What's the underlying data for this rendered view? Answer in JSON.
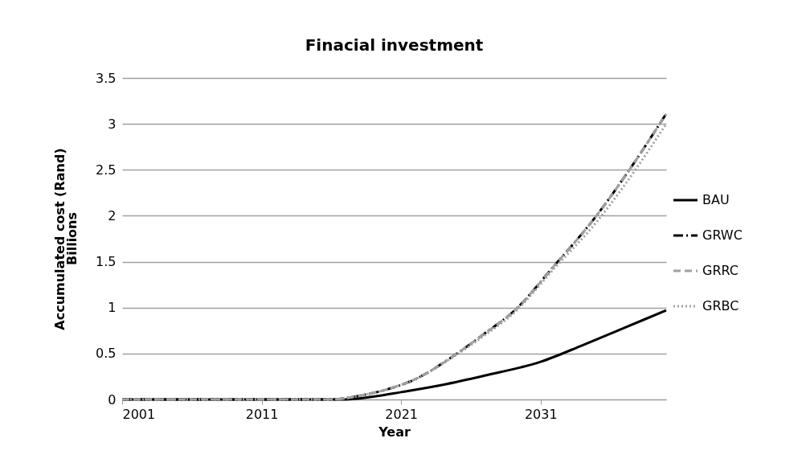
{
  "chart_data": {
    "type": "line",
    "title": "Finacial investment",
    "xlabel": "Year",
    "ylabel": "Accumulated cost (Rand)",
    "annotations": [
      "Billions"
    ],
    "xlim": [
      2001,
      2040
    ],
    "xticks": [
      2001,
      2011,
      2021,
      2031
    ],
    "ylim": [
      0,
      3.5
    ],
    "yticks": [
      0,
      0.5,
      1,
      1.5,
      2,
      2.5,
      3,
      3.5
    ],
    "grid": "y",
    "legend": "right",
    "marker": "none",
    "series": [
      {
        "name": "BAU",
        "color": "#000000",
        "line_style": "solid",
        "x": [
          2001,
          2017,
          2019,
          2021,
          2024,
          2027,
          2031,
          2034,
          2037,
          2040
        ],
        "values": [
          0,
          0,
          0.03,
          0.08,
          0.16,
          0.26,
          0.41,
          0.59,
          0.78,
          0.97
        ]
      },
      {
        "name": "GRWC",
        "color": "#000000",
        "line_style": "dashdot",
        "x": [
          2001,
          2016,
          2018,
          2020,
          2022,
          2025,
          2027,
          2029,
          2032,
          2035,
          2037,
          2040
        ],
        "values": [
          0,
          0,
          0.04,
          0.11,
          0.22,
          0.5,
          0.72,
          0.95,
          1.46,
          2.0,
          2.42,
          3.11
        ]
      },
      {
        "name": "GRRC",
        "color": "#a0a0a0",
        "line_style": "dashed",
        "x": [
          2001,
          2016,
          2018,
          2020,
          2022,
          2025,
          2027,
          2029,
          2032,
          2035,
          2037,
          2040
        ],
        "values": [
          0,
          0,
          0.04,
          0.11,
          0.22,
          0.5,
          0.72,
          0.95,
          1.46,
          2.0,
          2.42,
          3.11
        ]
      },
      {
        "name": "GRBC",
        "color": "#a0a0a0",
        "line_style": "dotted",
        "x": [
          2001,
          2016,
          2018,
          2020,
          2022,
          2025,
          2027,
          2029,
          2032,
          2035,
          2037,
          2040
        ],
        "values": [
          0,
          0,
          0.04,
          0.11,
          0.22,
          0.49,
          0.7,
          0.93,
          1.43,
          1.93,
          2.33,
          3.0
        ]
      }
    ]
  }
}
